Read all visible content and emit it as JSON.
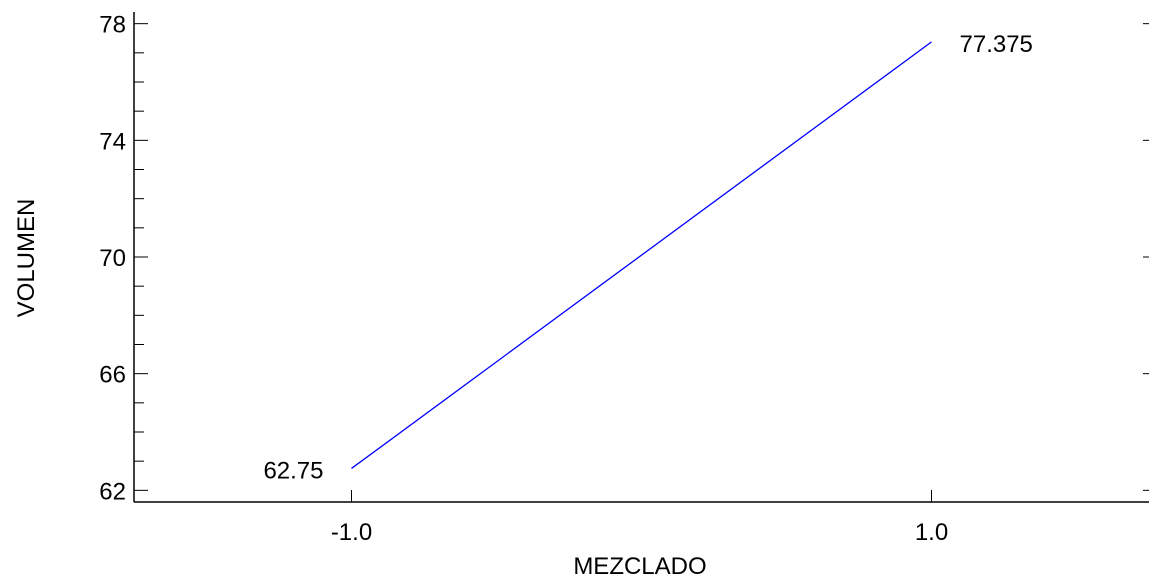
{
  "chart_data": {
    "type": "line",
    "title": "",
    "xlabel": "MEZCLADO",
    "ylabel": "VOLUMEN",
    "x": [
      -1.0,
      1.0
    ],
    "x_tick_labels": [
      "-1.0",
      "1.0"
    ],
    "xlim": [
      -1.75,
      1.75
    ],
    "ylim": [
      61.6,
      78.4
    ],
    "y_ticks": [
      62,
      66,
      70,
      74,
      78
    ],
    "y_tick_labels": [
      "62",
      "66",
      "70",
      "74",
      "78"
    ],
    "y_minor_step": 1,
    "series": [
      {
        "values": [
          62.75,
          77.375
        ],
        "point_labels": [
          "62.75",
          "77.375"
        ],
        "color": "#0000ff"
      }
    ],
    "grid": false,
    "legend": "none"
  }
}
